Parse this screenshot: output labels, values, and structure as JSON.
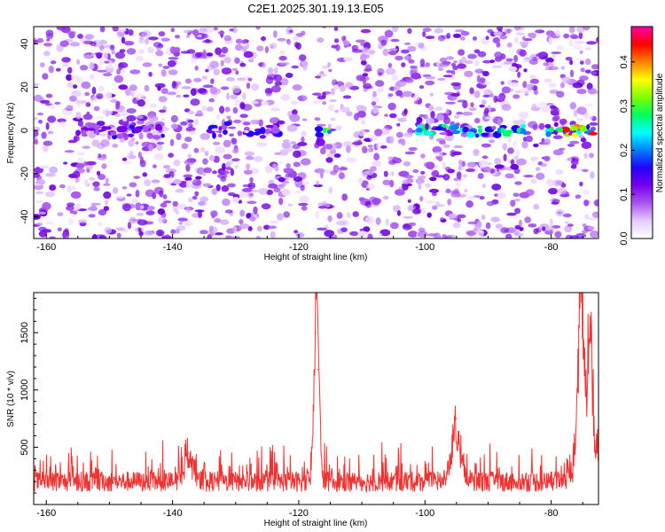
{
  "title": "C2E1.2025.301.19.13.E05",
  "chart_data": [
    {
      "type": "heatmap",
      "name": "spectrogram",
      "xlabel": "Height of straight line (km)",
      "ylabel": "Frequency (Hz)",
      "xlim": [
        -162,
        -72.5
      ],
      "ylim": [
        -50,
        48
      ],
      "xticks": [
        -160,
        -140,
        -120,
        -100,
        -80
      ],
      "yticks": [
        40,
        20,
        0,
        -20,
        -40
      ],
      "gap_x_range": [
        -118.8,
        -117.2
      ],
      "signal_band": {
        "frequency_hz": 0,
        "segments": [
          {
            "x_from": -155,
            "x_to": -141,
            "peak_amplitude": 0.15
          },
          {
            "x_from": -134,
            "x_to": -123,
            "peak_amplitude": 0.18
          },
          {
            "x_from": -117,
            "x_to": -115,
            "peak_amplitude": 0.35
          },
          {
            "x_from": -101,
            "x_to": -84,
            "peak_amplitude": 0.3
          },
          {
            "x_from": -81,
            "x_to": -73,
            "peak_amplitude": 0.47
          }
        ]
      },
      "colorbar": {
        "label": "Normalized spectral amplitude",
        "range": [
          0,
          0.48
        ],
        "ticks": [
          "0.0",
          "0.1",
          "0.2",
          "0.3",
          "0.4"
        ],
        "tick_values": [
          0,
          0.1,
          0.2,
          0.3,
          0.4
        ],
        "colors": [
          "#ffffff",
          "#e6ccff",
          "#aa55ee",
          "#7700ee",
          "#2200ff",
          "#0080ff",
          "#00ffff",
          "#00ff60",
          "#80ff00",
          "#ffff00",
          "#ff8000",
          "#ff0000",
          "#ff00aa"
        ]
      }
    },
    {
      "type": "line",
      "name": "snr",
      "xlabel": "Height of straight line (km)",
      "ylabel": "SNR (10 * v/v)",
      "xlim": [
        -162,
        -72.5
      ],
      "ylim": [
        0,
        1850
      ],
      "xticks": [
        -160,
        -140,
        -120,
        -100,
        -80
      ],
      "yticks": [
        500,
        1000,
        1500
      ],
      "color": "#ee3333",
      "baseline_snr": 200,
      "peaks": [
        {
          "x": -137.5,
          "y": 450
        },
        {
          "x": -117.3,
          "y": 1500
        },
        {
          "x": -117.0,
          "y": 1180
        },
        {
          "x": -95.0,
          "y": 750
        },
        {
          "x": -75.5,
          "y": 1550
        },
        {
          "x": -75.0,
          "y": 1700
        },
        {
          "x": -73.8,
          "y": 1850
        }
      ]
    }
  ]
}
